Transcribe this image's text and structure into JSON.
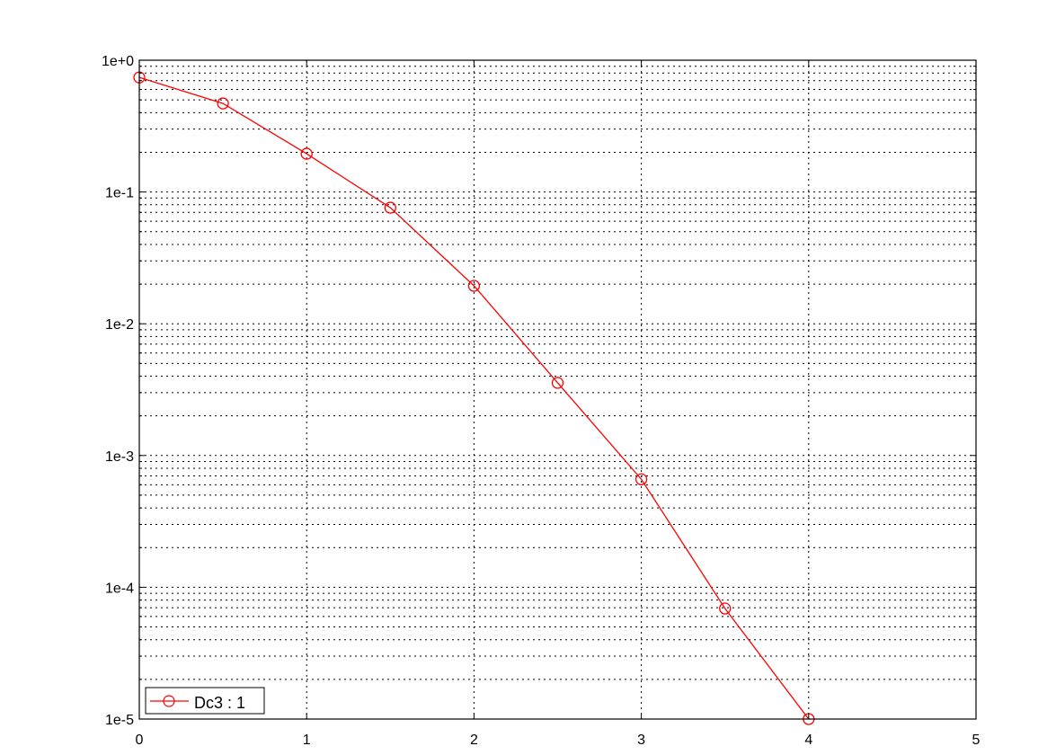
{
  "chart_data": {
    "type": "line",
    "title": "",
    "xlabel": "",
    "ylabel": "",
    "xlim": [
      0,
      5
    ],
    "ylim": [
      1e-05,
      1
    ],
    "yscale": "log",
    "grid": true,
    "legend_position": "bottom-left",
    "x_ticks": [
      "0",
      "1",
      "2",
      "3",
      "4",
      "5"
    ],
    "y_ticks": [
      "1e+0",
      "1e-1",
      "1e-2",
      "1e-3",
      "1e-4",
      "1e-5"
    ],
    "series": [
      {
        "name": "Dc3 : 1",
        "color": "#ff0000",
        "marker": "circle",
        "x": [
          0,
          0.5,
          1,
          1.5,
          2,
          2.5,
          3,
          3.5,
          4
        ],
        "y": [
          0.74,
          0.47,
          0.195,
          0.076,
          0.0194,
          0.00356,
          0.00066,
          6.9e-05,
          1e-05
        ]
      }
    ]
  }
}
